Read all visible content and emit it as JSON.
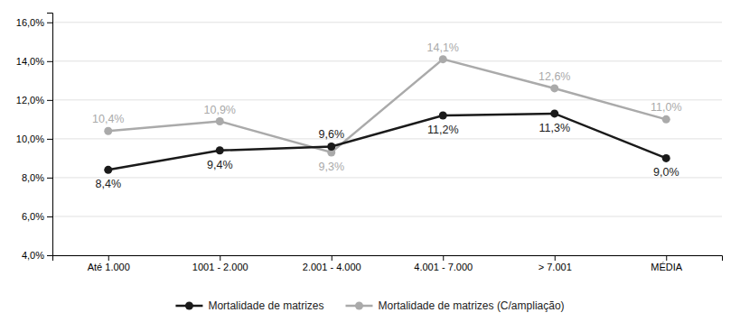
{
  "chart_data": {
    "type": "line",
    "categories": [
      "Até 1.000",
      "1001 - 2.000",
      "2.001 - 4.000",
      "4.001 - 7.000",
      "> 7.001",
      "MÉDIA"
    ],
    "series": [
      {
        "name": "Mortalidade de matrizes",
        "color": "#1a1a1a",
        "marker": "circle",
        "line_style": "solid",
        "values": [
          8.4,
          9.4,
          9.6,
          11.2,
          11.3,
          9.0
        ],
        "value_labels": [
          "8,4%",
          "9,4%",
          "9,6%",
          "11,2%",
          "11,3%",
          "9,0%"
        ]
      },
      {
        "name": "Mortalidade de matrizes (C/ampliação)",
        "color": "#aaaaaa",
        "marker": "circle",
        "line_style": "solid",
        "values": [
          10.4,
          10.9,
          9.3,
          14.1,
          12.6,
          11.0
        ],
        "value_labels": [
          "10,4%",
          "10,9%",
          "9,3%",
          "14,1%",
          "12,6%",
          "11,0%"
        ]
      }
    ],
    "ylim": [
      4.0,
      16.5
    ],
    "yticks": [
      {
        "value": 4.0,
        "label": "4,0%"
      },
      {
        "value": 6.0,
        "label": "6,0%"
      },
      {
        "value": 8.0,
        "label": "8,0%"
      },
      {
        "value": 10.0,
        "label": "10,0%"
      },
      {
        "value": 12.0,
        "label": "12,0%"
      },
      {
        "value": 14.0,
        "label": "14,0%"
      },
      {
        "value": 16.0,
        "label": "16,0%"
      }
    ],
    "grid": true,
    "legend": "bottom",
    "data_labels": true
  }
}
